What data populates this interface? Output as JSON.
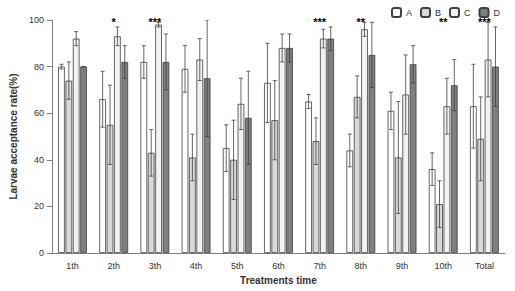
{
  "chart_data": {
    "type": "bar",
    "x_label": "Treatments time",
    "y_label": "Larvae acceptance rate(%)",
    "categories": [
      "1th",
      "2th",
      "3th",
      "4th",
      "5th",
      "6th",
      "7th",
      "8th",
      "9th",
      "10th",
      "Total"
    ],
    "series": [
      {
        "name": "A",
        "color": "#ffffff",
        "values": [
          80,
          66,
          82,
          79,
          45,
          73,
          65,
          44,
          61,
          36,
          63
        ],
        "errors": [
          1,
          12,
          7,
          10,
          10,
          17,
          3,
          7,
          8,
          7,
          18
        ]
      },
      {
        "name": "B",
        "color": "#d9d9d9",
        "values": [
          74,
          55,
          43,
          41,
          40,
          57,
          48,
          67,
          41,
          21,
          49
        ],
        "errors": [
          8,
          17,
          10,
          10,
          17,
          17,
          10,
          9,
          24,
          10,
          18
        ]
      },
      {
        "name": "C",
        "color": "#f2f2f2",
        "values": [
          92,
          93,
          98,
          83,
          64,
          88,
          92,
          96,
          68,
          63,
          83
        ],
        "errors": [
          3,
          4,
          1,
          9,
          11,
          6,
          4,
          3,
          17,
          12,
          16
        ]
      },
      {
        "name": "D",
        "color": "#7f7f7f",
        "values": [
          80,
          82,
          82,
          75,
          58,
          88,
          92,
          85,
          81,
          72,
          80
        ],
        "errors": [
          0,
          7,
          12,
          25,
          20,
          6,
          5,
          14,
          8,
          11,
          17
        ]
      }
    ],
    "annotations": [
      {
        "category": "2th",
        "text": "*"
      },
      {
        "category": "3th",
        "text": "***"
      },
      {
        "category": "7th",
        "text": "***"
      },
      {
        "category": "8th",
        "text": "**"
      },
      {
        "category": "10th",
        "text": "**"
      },
      {
        "category": "Total",
        "text": "***"
      }
    ],
    "ylim": [
      0,
      100
    ],
    "yticks": [
      0,
      20,
      40,
      60,
      80,
      100
    ],
    "grid": false,
    "legend": "top-right"
  }
}
